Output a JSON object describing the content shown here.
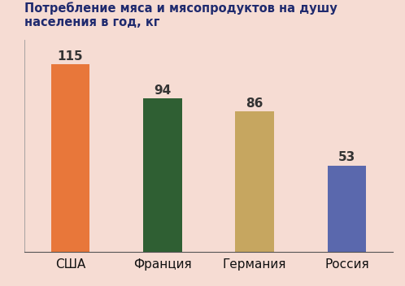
{
  "chart_data": {
    "type": "bar",
    "title": "Потребление мяса и мясопродуктов на душу населения в год, кг",
    "categories": [
      "США",
      "Франция",
      "Германия",
      "Россия"
    ],
    "values": [
      115,
      94,
      86,
      53
    ],
    "colors": [
      "#e8773a",
      "#2f5f33",
      "#c6a660",
      "#5a68ad"
    ],
    "ylim": [
      0,
      130
    ],
    "data_labels": true,
    "tick_labels": "x",
    "grid": false
  }
}
